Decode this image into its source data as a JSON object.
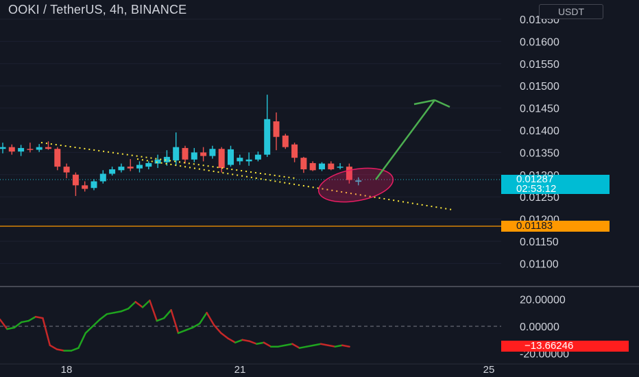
{
  "header": {
    "title": "OOKI / TetherUS, 4h, BINANCE",
    "currency": "USDT"
  },
  "colors": {
    "background": "#131722",
    "up": "#26c6da",
    "down": "#ef5350",
    "text": "#d1d4dc",
    "support_line": "#ff9800",
    "trend_line": "#ffeb3b",
    "arrow": "#4caf50",
    "ellipse": "#e91e63",
    "osc_up": "#1fa51f",
    "osc_down": "#c62828"
  },
  "price_axis": {
    "ticks": [
      "0.01650",
      "0.01600",
      "0.01550",
      "0.01500",
      "0.01450",
      "0.01400",
      "0.01350",
      "0.01300",
      "0.01250",
      "0.01200",
      "0.01150",
      "0.01100"
    ]
  },
  "price_tags": {
    "current_price": "0.01287",
    "countdown": "02:53:12",
    "support_price": "0.01183"
  },
  "oscillator": {
    "ticks": [
      "20.00000",
      "0.00000",
      "-20.00000"
    ],
    "current_value": "−13.66246",
    "values": [
      5,
      -2,
      -1,
      3,
      4,
      7,
      6,
      -14,
      -17,
      -18,
      -18,
      -16,
      -5,
      0,
      5,
      9,
      10,
      11,
      13,
      18,
      14,
      19,
      4,
      6,
      12,
      -5,
      -3,
      -1,
      2,
      10,
      1,
      -5,
      -9,
      -12,
      -10,
      -11,
      -13,
      -12,
      -15,
      -15,
      -14,
      -13,
      -16,
      -15,
      -14,
      -13,
      -14,
      -15,
      -14,
      -15
    ]
  },
  "time_axis": {
    "labels": [
      "18",
      "21",
      "25"
    ]
  },
  "candles": [
    {
      "o": 0.01358,
      "h": 0.01372,
      "l": 0.01348,
      "c": 0.01362
    },
    {
      "o": 0.01362,
      "h": 0.01368,
      "l": 0.01345,
      "c": 0.01352
    },
    {
      "o": 0.01352,
      "h": 0.01367,
      "l": 0.01342,
      "c": 0.0136
    },
    {
      "o": 0.01358,
      "h": 0.01372,
      "l": 0.0135,
      "c": 0.01356
    },
    {
      "o": 0.01356,
      "h": 0.01369,
      "l": 0.01351,
      "c": 0.01362
    },
    {
      "o": 0.01362,
      "h": 0.01375,
      "l": 0.01356,
      "c": 0.01358
    },
    {
      "o": 0.01358,
      "h": 0.01362,
      "l": 0.0131,
      "c": 0.01318
    },
    {
      "o": 0.01318,
      "h": 0.01325,
      "l": 0.01292,
      "c": 0.01305
    },
    {
      "o": 0.013,
      "h": 0.01305,
      "l": 0.01252,
      "c": 0.01276
    },
    {
      "o": 0.01276,
      "h": 0.01285,
      "l": 0.01262,
      "c": 0.01268
    },
    {
      "o": 0.0127,
      "h": 0.0129,
      "l": 0.01265,
      "c": 0.01285
    },
    {
      "o": 0.01285,
      "h": 0.0131,
      "l": 0.0128,
      "c": 0.01302
    },
    {
      "o": 0.01302,
      "h": 0.01318,
      "l": 0.01298,
      "c": 0.01312
    },
    {
      "o": 0.0131,
      "h": 0.01325,
      "l": 0.01305,
      "c": 0.01318
    },
    {
      "o": 0.01318,
      "h": 0.01335,
      "l": 0.01308,
      "c": 0.01314
    },
    {
      "o": 0.01314,
      "h": 0.0133,
      "l": 0.01305,
      "c": 0.01322
    },
    {
      "o": 0.01318,
      "h": 0.0133,
      "l": 0.01312,
      "c": 0.01326
    },
    {
      "o": 0.01325,
      "h": 0.01345,
      "l": 0.01315,
      "c": 0.01334
    },
    {
      "o": 0.01328,
      "h": 0.01355,
      "l": 0.0132,
      "c": 0.0134
    },
    {
      "o": 0.01332,
      "h": 0.01395,
      "l": 0.0132,
      "c": 0.01362
    },
    {
      "o": 0.0136,
      "h": 0.01365,
      "l": 0.01325,
      "c": 0.01334
    },
    {
      "o": 0.01334,
      "h": 0.0136,
      "l": 0.01328,
      "c": 0.0135
    },
    {
      "o": 0.0135,
      "h": 0.01362,
      "l": 0.0133,
      "c": 0.01342
    },
    {
      "o": 0.01342,
      "h": 0.01365,
      "l": 0.01336,
      "c": 0.01358
    },
    {
      "o": 0.01358,
      "h": 0.01362,
      "l": 0.01305,
      "c": 0.01315
    },
    {
      "o": 0.01322,
      "h": 0.01365,
      "l": 0.01318,
      "c": 0.01357
    },
    {
      "o": 0.0133,
      "h": 0.01345,
      "l": 0.01322,
      "c": 0.01338
    },
    {
      "o": 0.0133,
      "h": 0.0135,
      "l": 0.0132,
      "c": 0.01334
    },
    {
      "o": 0.01334,
      "h": 0.01352,
      "l": 0.0133,
      "c": 0.01345
    },
    {
      "o": 0.01345,
      "h": 0.0148,
      "l": 0.0134,
      "c": 0.01425
    },
    {
      "o": 0.0142,
      "h": 0.0144,
      "l": 0.01355,
      "c": 0.01385
    },
    {
      "o": 0.01388,
      "h": 0.01392,
      "l": 0.01358,
      "c": 0.01362
    },
    {
      "o": 0.01368,
      "h": 0.01372,
      "l": 0.01328,
      "c": 0.01338
    },
    {
      "o": 0.01338,
      "h": 0.0134,
      "l": 0.01304,
      "c": 0.01312
    },
    {
      "o": 0.01326,
      "h": 0.0133,
      "l": 0.01308,
      "c": 0.0131
    },
    {
      "o": 0.01312,
      "h": 0.01328,
      "l": 0.01308,
      "c": 0.01325
    },
    {
      "o": 0.01325,
      "h": 0.0133,
      "l": 0.0131,
      "c": 0.01312
    },
    {
      "o": 0.01318,
      "h": 0.01326,
      "l": 0.01312,
      "c": 0.01318
    },
    {
      "o": 0.01318,
      "h": 0.01325,
      "l": 0.0128,
      "c": 0.01288
    },
    {
      "o": 0.01284,
      "h": 0.01294,
      "l": 0.01276,
      "c": 0.01287
    }
  ]
}
